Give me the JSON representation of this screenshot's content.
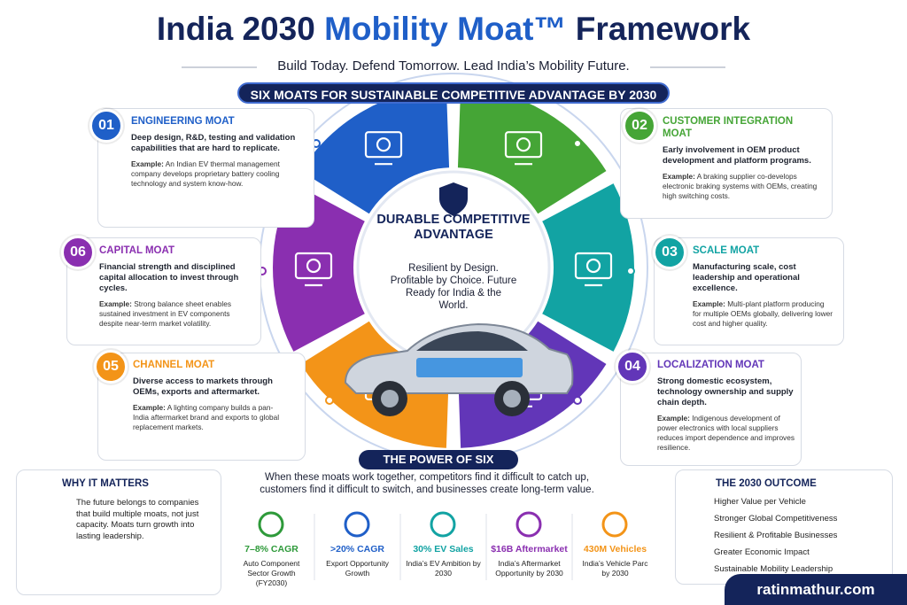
{
  "header": {
    "title_parts": [
      "India 2030",
      "Mobility Moat™",
      "Framework"
    ],
    "subtitle": "Build Today. Defend Tomorrow. Lead India’s Mobility Future."
  },
  "banner": "SIX MOATS FOR SUSTAINABLE COMPETITIVE ADVANTAGE BY 2030",
  "moats": [
    {
      "number": "01",
      "title": "ENGINEERING MOAT",
      "description": "Deep design, R&D, testing and validation capabilities that are hard to replicate.",
      "example_label": "Example:",
      "example": "An Indian EV thermal management company develops proprietary battery cooling technology and system know-how."
    },
    {
      "number": "02",
      "title": "CUSTOMER INTEGRATION MOAT",
      "description": "Early involvement in OEM product development and platform programs.",
      "example_label": "Example:",
      "example": "A braking supplier co-develops electronic braking systems with OEMs, creating high switching costs."
    },
    {
      "number": "03",
      "title": "SCALE MOAT",
      "description": "Manufacturing scale, cost leadership and operational excellence.",
      "example_label": "Example:",
      "example": "Multi-plant platform producing for multiple OEMs globally, delivering lower cost and higher quality."
    },
    {
      "number": "04",
      "title": "LOCALIZATION MOAT",
      "description": "Strong domestic ecosystem, technology ownership and supply chain depth.",
      "example_label": "Example:",
      "example": "Indigenous development of power electronics with local suppliers reduces import dependence and improves resilience."
    },
    {
      "number": "05",
      "title": "CHANNEL MOAT",
      "description": "Diverse access to markets through OEMs, exports and aftermarket.",
      "example_label": "Example:",
      "example": "A lighting company builds a pan-India aftermarket brand and exports to global replacement markets."
    },
    {
      "number": "06",
      "title": "CAPITAL MOAT",
      "description": "Financial strength and disciplined capital allocation to invest through cycles.",
      "example_label": "Example:",
      "example": "Strong balance sheet enables sustained investment in EV components despite near-term market volatility."
    }
  ],
  "center": {
    "title": "DURABLE COMPETITIVE ADVANTAGE",
    "text": "Resilient by Design. Profitable by Choice. Future Ready for India & the World."
  },
  "power": {
    "title": "THE POWER OF SIX",
    "text": "When these moats work together, competitors find it difficult to catch up, customers find it difficult to switch, and businesses create long-term value."
  },
  "why": {
    "title": "WHY IT MATTERS",
    "text": "The future belongs to companies that build multiple moats, not just capacity. Moats turn growth into lasting leadership."
  },
  "stats": [
    {
      "value": "7–8% CAGR",
      "label": "Auto Component Sector Growth (FY2030)"
    },
    {
      "value": ">20% CAGR",
      "label": "Export Opportunity Growth"
    },
    {
      "value": "30% EV Sales",
      "label": "India’s EV Ambition by 2030"
    },
    {
      "value": "$16B Aftermarket",
      "label": "India’s Aftermarket Opportunity by 2030"
    },
    {
      "value": "430M Vehicles",
      "label": "India’s Vehicle Parc by 2030"
    }
  ],
  "outcome": {
    "title": "THE 2030 OUTCOME",
    "items": [
      "Higher Value per Vehicle",
      "Stronger Global Competitiveness",
      "Resilient & Profitable Businesses",
      "Greater Economic Impact",
      "Sustainable Mobility Leadership"
    ]
  },
  "footer": "ratinmathur.com"
}
